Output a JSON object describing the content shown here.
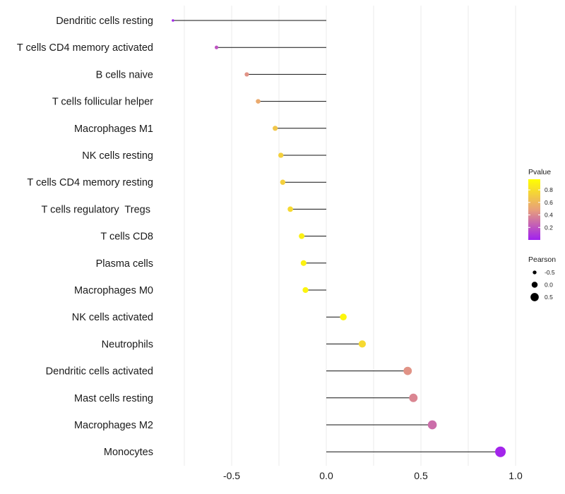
{
  "chart_data": {
    "type": "lollipop",
    "title": "",
    "xlabel": "",
    "ylabel": "",
    "xlim": [
      -0.86,
      1.03
    ],
    "xticks": [
      -0.5,
      0.0,
      0.5,
      1.0
    ],
    "xtick_labels": [
      "-0.5",
      "0.0",
      "0.5",
      "1.0"
    ],
    "grid": true,
    "categories": [
      "Dendritic cells resting",
      "T cells CD4 memory activated",
      "B cells naive",
      "T cells follicular helper",
      "Macrophages M1",
      "NK cells resting",
      "T cells CD4 memory resting",
      "T cells regulatory  Tregs ",
      "T cells CD8",
      "Plasma cells",
      "Macrophages M0",
      "NK cells activated",
      "Neutrophils",
      "Dendritic cells activated",
      "Mast cells resting",
      "Macrophages M2",
      "Monocytes"
    ],
    "pearson": [
      -0.81,
      -0.58,
      -0.42,
      -0.36,
      -0.27,
      -0.24,
      -0.23,
      -0.19,
      -0.13,
      -0.12,
      -0.11,
      0.09,
      0.19,
      0.43,
      0.46,
      0.56,
      0.92
    ],
    "pvalue": [
      0.03,
      0.2,
      0.45,
      0.55,
      0.7,
      0.75,
      0.75,
      0.8,
      0.92,
      0.93,
      0.94,
      0.95,
      0.8,
      0.45,
      0.4,
      0.3,
      0.02
    ],
    "legend": {
      "position": "right",
      "color_title": "Pvalue",
      "color_ticks": [
        0.8,
        0.6,
        0.4,
        0.2
      ],
      "color_tick_labels": [
        "0.8",
        "0.6",
        "0.4",
        "0.2"
      ],
      "color_low": "#a020f0",
      "color_mid": "#e8a07a",
      "color_high": "#ffff00",
      "size_title": "Pearson",
      "size_values": [
        -0.5,
        0.0,
        0.5
      ],
      "size_labels": [
        "-0.5",
        "0.0",
        "0.5"
      ]
    },
    "colors": {
      "stem": "#111111",
      "grid": "#ebebeb",
      "text": "#1a1a1a"
    }
  }
}
